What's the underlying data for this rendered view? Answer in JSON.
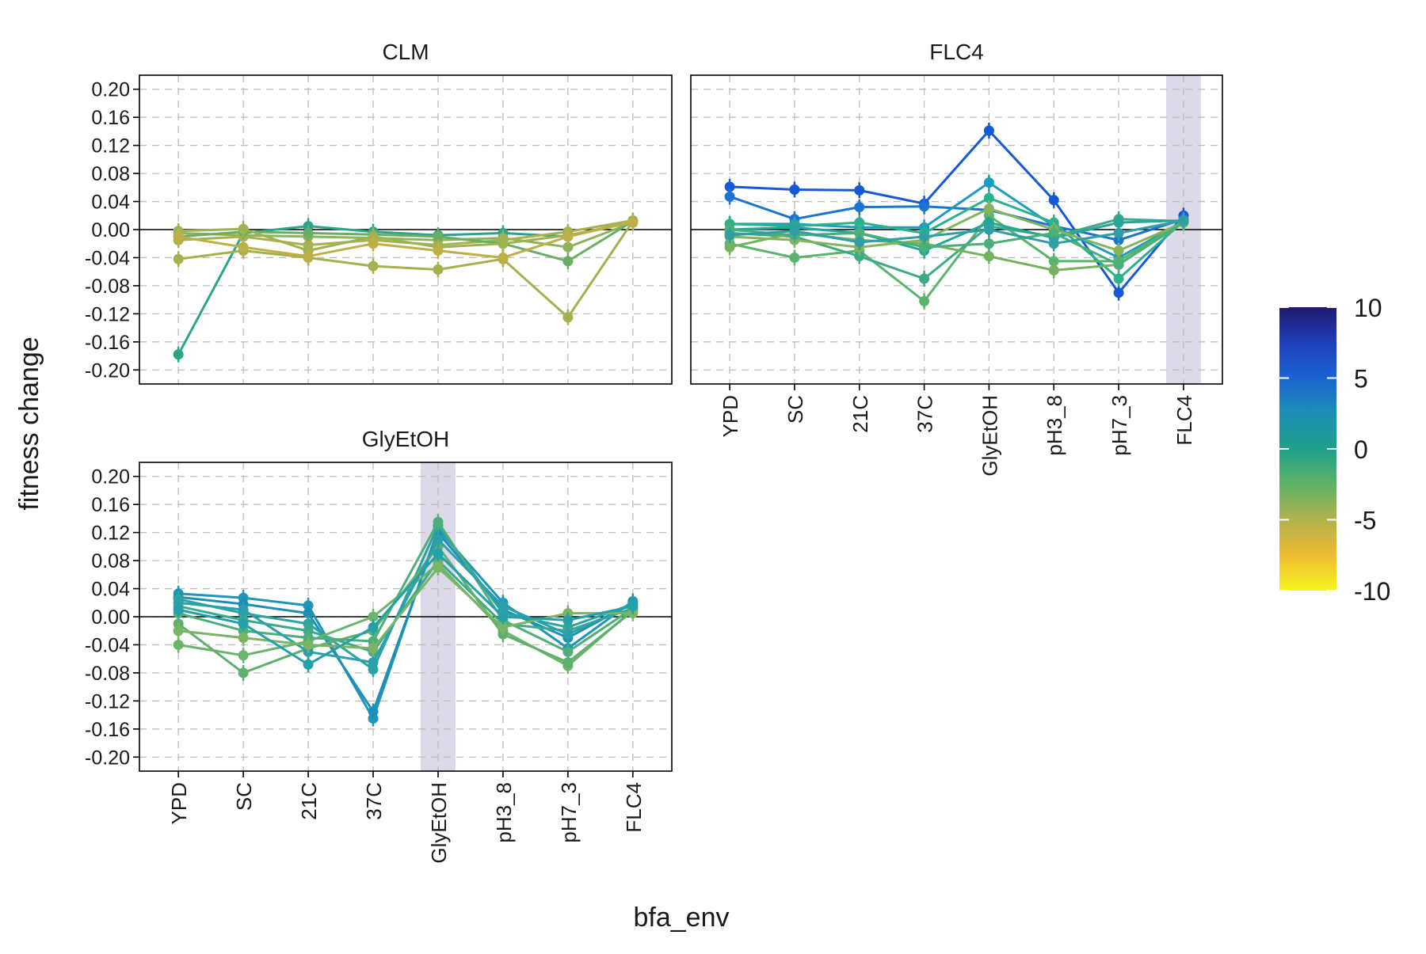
{
  "chart_data": {
    "type": "line",
    "xlabel": "bfa_env",
    "ylabel": "fitness change",
    "categories": [
      "YPD",
      "SC",
      "21C",
      "37C",
      "GlyEtOH",
      "pH3_8",
      "pH7_3",
      "FLC4"
    ],
    "yticks": [
      "0.20",
      "0.16",
      "0.12",
      "0.08",
      "0.04",
      "0.00",
      "-0.04",
      "-0.08",
      "-0.12",
      "-0.16",
      "-0.20"
    ],
    "ylim": [
      -0.22,
      0.22
    ],
    "grid": true,
    "colorbar": {
      "ticks": [
        "10",
        "5",
        "0",
        "-5",
        "-10"
      ],
      "range": [
        -10,
        10
      ],
      "colors": [
        "#f7f41e",
        "#eebc33",
        "#b3b24b",
        "#5fb267",
        "#1ea08a",
        "#1d8fb6",
        "#1b63d1",
        "#1f3fba",
        "#1e1a6e"
      ]
    },
    "panels": [
      {
        "title": "CLM",
        "highlight": "",
        "series": [
          {
            "color": "#2aa58a",
            "values": [
              -0.178,
              -0.005,
              0.005,
              -0.003,
              -0.008,
              -0.005,
              -0.01,
              0.012
            ]
          },
          {
            "color": "#8fb35a",
            "values": [
              -0.005,
              -0.008,
              -0.01,
              -0.012,
              -0.015,
              -0.012,
              -0.025,
              0.01
            ]
          },
          {
            "color": "#a6b04f",
            "values": [
              -0.042,
              -0.03,
              -0.04,
              -0.052,
              -0.057,
              -0.042,
              -0.125,
              0.012
            ]
          },
          {
            "color": "#a8b24c",
            "values": [
              -0.015,
              -0.01,
              -0.022,
              -0.015,
              -0.022,
              -0.015,
              -0.003,
              0.013
            ]
          },
          {
            "color": "#6aae66",
            "values": [
              -0.01,
              -0.003,
              -0.005,
              -0.007,
              -0.01,
              -0.02,
              -0.045,
              0.012
            ]
          },
          {
            "color": "#9fb252",
            "values": [
              -0.002,
              0.001,
              -0.03,
              -0.01,
              -0.025,
              -0.02,
              -0.008,
              0.01
            ]
          },
          {
            "color": "#bfaf47",
            "values": [
              -0.01,
              -0.025,
              -0.038,
              -0.02,
              -0.03,
              -0.04,
              -0.01,
              0.011
            ]
          }
        ]
      },
      {
        "title": "FLC4",
        "highlight": "FLC4",
        "series": [
          {
            "color": "#1659d6",
            "values": [
              0.061,
              0.057,
              0.056,
              0.037,
              0.141,
              0.042,
              -0.09,
              0.02
            ]
          },
          {
            "color": "#1c74d0",
            "values": [
              0.047,
              0.015,
              0.032,
              0.033,
              0.028,
              0.005,
              -0.015,
              0.015
            ]
          },
          {
            "color": "#1b9cc0",
            "values": [
              0.008,
              0.008,
              0.003,
              0.003,
              0.067,
              0.005,
              -0.04,
              0.012
            ]
          },
          {
            "color": "#2ab28c",
            "values": [
              0.008,
              0.005,
              0.01,
              -0.005,
              0.045,
              0.01,
              -0.07,
              0.012
            ]
          },
          {
            "color": "#5ab46c",
            "values": [
              -0.02,
              -0.04,
              -0.03,
              -0.102,
              0.02,
              -0.045,
              -0.045,
              0.012
            ]
          },
          {
            "color": "#3ea986",
            "values": [
              -0.005,
              -0.01,
              -0.038,
              -0.07,
              0.005,
              -0.01,
              0.015,
              0.012
            ]
          },
          {
            "color": "#74b260",
            "values": [
              -0.025,
              -0.005,
              -0.015,
              -0.02,
              -0.038,
              -0.058,
              -0.05,
              0.01
            ]
          },
          {
            "color": "#25a69a",
            "values": [
              0.0,
              0.003,
              -0.005,
              -0.03,
              0.01,
              -0.012,
              0.01,
              0.013
            ]
          },
          {
            "color": "#84b45c",
            "values": [
              -0.01,
              -0.015,
              -0.025,
              -0.015,
              0.03,
              0.0,
              -0.03,
              0.01
            ]
          },
          {
            "color": "#4caf78",
            "values": [
              0.0,
              -0.008,
              -0.005,
              -0.025,
              -0.02,
              -0.005,
              -0.05,
              0.011
            ]
          },
          {
            "color": "#2f9fa4",
            "values": [
              -0.008,
              -0.002,
              -0.018,
              -0.01,
              0.0,
              -0.02,
              -0.005,
              0.013
            ]
          }
        ]
      },
      {
        "title": "GlyEtOH",
        "highlight": "GlyEtOH",
        "series": [
          {
            "color": "#1f96b8",
            "values": [
              0.033,
              0.027,
              0.016,
              -0.145,
              0.125,
              0.02,
              -0.045,
              0.022
            ]
          },
          {
            "color": "#1d8fb6",
            "values": [
              0.028,
              0.018,
              0.005,
              -0.135,
              0.12,
              0.01,
              -0.03,
              0.02
            ]
          },
          {
            "color": "#2aa5a0",
            "values": [
              0.025,
              0.005,
              -0.01,
              -0.075,
              0.13,
              0.005,
              -0.015,
              0.018
            ]
          },
          {
            "color": "#3aaa8a",
            "values": [
              0.015,
              -0.005,
              -0.02,
              -0.05,
              0.08,
              -0.01,
              -0.02,
              0.012
            ]
          },
          {
            "color": "#6cb36e",
            "values": [
              -0.04,
              -0.055,
              -0.035,
              0.0,
              0.075,
              -0.02,
              -0.07,
              0.01
            ]
          },
          {
            "color": "#5eb06c",
            "values": [
              -0.01,
              -0.08,
              -0.045,
              -0.02,
              0.1,
              -0.025,
              -0.065,
              0.008
            ]
          },
          {
            "color": "#4cae7a",
            "values": [
              0.005,
              -0.02,
              -0.03,
              -0.035,
              0.135,
              -0.005,
              -0.05,
              0.012
            ]
          },
          {
            "color": "#2c9fac",
            "values": [
              0.02,
              0.01,
              -0.05,
              -0.065,
              0.11,
              0.015,
              -0.025,
              0.018
            ]
          },
          {
            "color": "#7ab466",
            "values": [
              -0.02,
              -0.03,
              -0.04,
              -0.045,
              0.07,
              -0.015,
              0.005,
              0.005
            ]
          },
          {
            "color": "#24a0a8",
            "values": [
              0.01,
              -0.01,
              -0.068,
              -0.015,
              0.09,
              0.0,
              -0.005,
              0.015
            ]
          }
        ]
      }
    ]
  }
}
